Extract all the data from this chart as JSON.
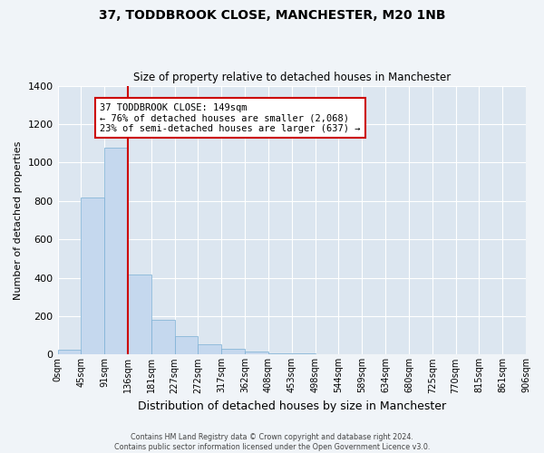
{
  "title": "37, TODDBROOK CLOSE, MANCHESTER, M20 1NB",
  "subtitle": "Size of property relative to detached houses in Manchester",
  "xlabel": "Distribution of detached houses by size in Manchester",
  "ylabel": "Number of detached properties",
  "bar_values": [
    25,
    820,
    1075,
    415,
    180,
    95,
    52,
    32,
    18,
    8,
    5,
    2,
    1,
    0,
    0,
    0,
    0,
    0,
    0,
    0
  ],
  "bar_color": "#c5d8ee",
  "bar_edge_color": "#7bafd4",
  "x_labels": [
    "0sqm",
    "45sqm",
    "91sqm",
    "136sqm",
    "181sqm",
    "227sqm",
    "272sqm",
    "317sqm",
    "362sqm",
    "408sqm",
    "453sqm",
    "498sqm",
    "544sqm",
    "589sqm",
    "634sqm",
    "680sqm",
    "725sqm",
    "770sqm",
    "815sqm",
    "861sqm",
    "906sqm"
  ],
  "ylim": [
    0,
    1400
  ],
  "yticks": [
    0,
    200,
    400,
    600,
    800,
    1000,
    1200,
    1400
  ],
  "grid_color": "#ffffff",
  "plot_bg_color": "#dce6f0",
  "fig_bg_color": "#f0f4f8",
  "vline_x": 3,
  "vline_color": "#cc0000",
  "annotation_text": "37 TODDBROOK CLOSE: 149sqm\n← 76% of detached houses are smaller (2,068)\n23% of semi-detached houses are larger (637) →",
  "annotation_box_color": "#ffffff",
  "annotation_border_color": "#cc0000",
  "footer_text": "Contains HM Land Registry data © Crown copyright and database right 2024.\nContains public sector information licensed under the Open Government Licence v3.0.",
  "fig_width": 6.0,
  "fig_height": 5.0
}
